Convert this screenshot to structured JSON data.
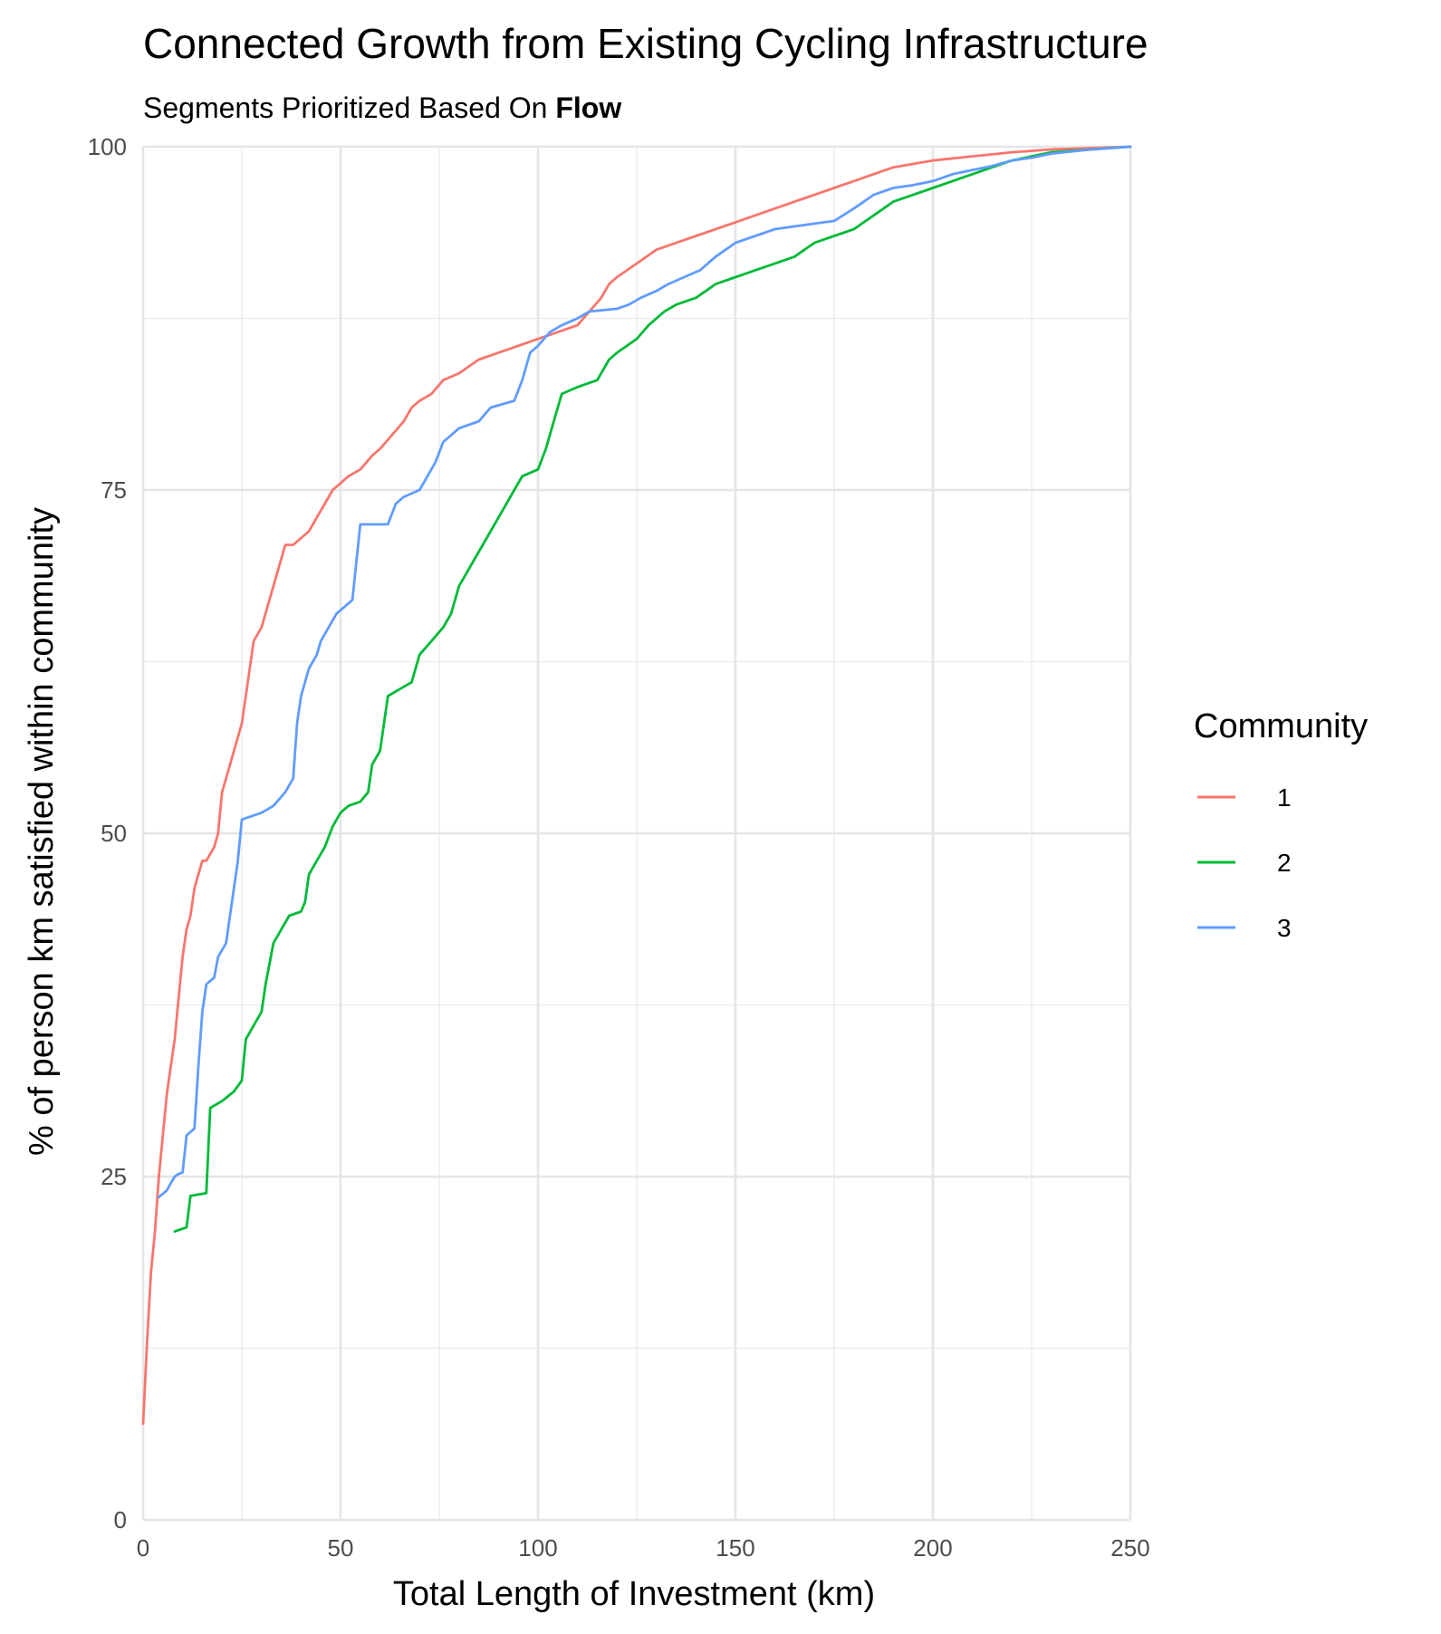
{
  "chart_data": {
    "type": "line",
    "title": "Connected Growth from Existing Cycling Infrastructure",
    "subtitle_prefix": "Segments Prioritized Based On ",
    "subtitle_emphasis": "Flow",
    "xlabel": "Total Length of Investment (km)",
    "ylabel": "% of person km satisfied within community",
    "xlim": [
      0,
      250
    ],
    "ylim": [
      0,
      100
    ],
    "x_ticks": [
      "0",
      "50",
      "100",
      "150",
      "200",
      "250"
    ],
    "y_ticks": [
      "0",
      "25",
      "50",
      "75",
      "100"
    ],
    "grid": true,
    "legend": {
      "title": "Community",
      "position": "right"
    },
    "series": [
      {
        "name": "1",
        "color": "#F8766D",
        "points": [
          [
            0,
            7
          ],
          [
            1,
            13
          ],
          [
            2,
            18
          ],
          [
            3,
            21
          ],
          [
            4,
            25
          ],
          [
            5,
            28
          ],
          [
            6,
            31
          ],
          [
            7,
            33
          ],
          [
            8,
            35
          ],
          [
            9,
            38
          ],
          [
            10,
            41
          ],
          [
            11,
            43
          ],
          [
            12,
            44
          ],
          [
            13,
            46
          ],
          [
            14,
            47
          ],
          [
            15,
            48
          ],
          [
            16,
            48
          ],
          [
            18,
            49
          ],
          [
            19,
            50
          ],
          [
            20,
            53
          ],
          [
            21,
            54
          ],
          [
            23,
            56
          ],
          [
            25,
            58
          ],
          [
            26,
            60
          ],
          [
            27,
            62
          ],
          [
            28,
            64
          ],
          [
            30,
            65
          ],
          [
            32,
            67
          ],
          [
            34,
            69
          ],
          [
            36,
            71
          ],
          [
            38,
            71
          ],
          [
            40,
            71.5
          ],
          [
            42,
            72
          ],
          [
            44,
            73
          ],
          [
            46,
            74
          ],
          [
            48,
            75
          ],
          [
            50,
            75.5
          ],
          [
            52,
            76
          ],
          [
            55,
            76.5
          ],
          [
            58,
            77.5
          ],
          [
            60,
            78
          ],
          [
            63,
            79
          ],
          [
            66,
            80
          ],
          [
            68,
            81
          ],
          [
            70,
            81.5
          ],
          [
            73,
            82
          ],
          [
            76,
            83
          ],
          [
            80,
            83.5
          ],
          [
            85,
            84.5
          ],
          [
            90,
            85
          ],
          [
            95,
            85.5
          ],
          [
            100,
            86
          ],
          [
            105,
            86.5
          ],
          [
            110,
            87
          ],
          [
            113,
            88
          ],
          [
            116,
            89
          ],
          [
            118,
            90
          ],
          [
            120,
            90.5
          ],
          [
            125,
            91.5
          ],
          [
            130,
            92.5
          ],
          [
            135,
            93
          ],
          [
            140,
            93.5
          ],
          [
            145,
            94
          ],
          [
            150,
            94.5
          ],
          [
            155,
            95
          ],
          [
            160,
            95.5
          ],
          [
            165,
            96
          ],
          [
            170,
            96.5
          ],
          [
            175,
            97
          ],
          [
            180,
            97.5
          ],
          [
            185,
            98
          ],
          [
            190,
            98.5
          ],
          [
            200,
            99
          ],
          [
            210,
            99.3
          ],
          [
            220,
            99.6
          ],
          [
            230,
            99.8
          ],
          [
            240,
            99.9
          ],
          [
            250,
            100
          ]
        ]
      },
      {
        "name": "2",
        "color": "#00BA38",
        "points": [
          [
            8,
            21
          ],
          [
            10,
            21.2
          ],
          [
            11,
            21.3
          ],
          [
            12,
            23.6
          ],
          [
            16,
            23.8
          ],
          [
            17,
            30
          ],
          [
            20,
            30.5
          ],
          [
            23,
            31.2
          ],
          [
            25,
            32
          ],
          [
            26,
            35
          ],
          [
            28,
            36
          ],
          [
            30,
            37
          ],
          [
            31,
            39
          ],
          [
            33,
            42
          ],
          [
            35,
            43
          ],
          [
            37,
            44
          ],
          [
            40,
            44.3
          ],
          [
            41,
            45
          ],
          [
            42,
            47
          ],
          [
            44,
            48
          ],
          [
            46,
            49
          ],
          [
            48,
            50.5
          ],
          [
            50,
            51.5
          ],
          [
            52,
            52
          ],
          [
            55,
            52.3
          ],
          [
            57,
            53
          ],
          [
            58,
            55
          ],
          [
            60,
            56
          ],
          [
            62,
            60
          ],
          [
            65,
            60.5
          ],
          [
            68,
            61
          ],
          [
            70,
            63
          ],
          [
            73,
            64
          ],
          [
            76,
            65
          ],
          [
            78,
            66
          ],
          [
            80,
            68
          ],
          [
            82,
            69
          ],
          [
            84,
            70
          ],
          [
            86,
            71
          ],
          [
            88,
            72
          ],
          [
            90,
            73
          ],
          [
            92,
            74
          ],
          [
            94,
            75
          ],
          [
            96,
            76
          ],
          [
            100,
            76.5
          ],
          [
            102,
            78
          ],
          [
            104,
            80
          ],
          [
            106,
            82
          ],
          [
            110,
            82.5
          ],
          [
            115,
            83
          ],
          [
            118,
            84.5
          ],
          [
            120,
            85
          ],
          [
            125,
            86
          ],
          [
            128,
            87
          ],
          [
            132,
            88
          ],
          [
            135,
            88.5
          ],
          [
            140,
            89
          ],
          [
            145,
            90
          ],
          [
            150,
            90.5
          ],
          [
            155,
            91
          ],
          [
            160,
            91.5
          ],
          [
            165,
            92
          ],
          [
            170,
            93
          ],
          [
            175,
            93.5
          ],
          [
            180,
            94
          ],
          [
            185,
            95
          ],
          [
            190,
            96
          ],
          [
            195,
            96.5
          ],
          [
            200,
            97
          ],
          [
            205,
            97.5
          ],
          [
            210,
            98
          ],
          [
            215,
            98.5
          ],
          [
            220,
            99
          ],
          [
            225,
            99.3
          ],
          [
            230,
            99.6
          ],
          [
            240,
            99.8
          ],
          [
            250,
            100
          ]
        ]
      },
      {
        "name": "3",
        "color": "#619CFF",
        "points": [
          [
            4,
            23.5
          ],
          [
            6,
            24
          ],
          [
            7,
            24.5
          ],
          [
            8,
            25
          ],
          [
            9,
            25.2
          ],
          [
            10,
            25.3
          ],
          [
            11,
            28
          ],
          [
            13,
            28.5
          ],
          [
            14,
            33
          ],
          [
            15,
            37
          ],
          [
            16,
            39
          ],
          [
            18,
            39.5
          ],
          [
            19,
            41
          ],
          [
            21,
            42
          ],
          [
            22,
            44
          ],
          [
            23,
            46
          ],
          [
            24,
            48
          ],
          [
            25,
            51
          ],
          [
            30,
            51.5
          ],
          [
            33,
            52
          ],
          [
            36,
            53
          ],
          [
            38,
            54
          ],
          [
            39,
            58
          ],
          [
            40,
            60
          ],
          [
            42,
            62
          ],
          [
            44,
            63
          ],
          [
            45,
            64
          ],
          [
            47,
            65
          ],
          [
            49,
            66
          ],
          [
            51,
            66.5
          ],
          [
            53,
            67
          ],
          [
            55,
            72.5
          ],
          [
            62,
            72.5
          ],
          [
            64,
            74
          ],
          [
            66,
            74.5
          ],
          [
            70,
            75
          ],
          [
            72,
            76
          ],
          [
            74,
            77
          ],
          [
            76,
            78.5
          ],
          [
            78,
            79
          ],
          [
            80,
            79.5
          ],
          [
            85,
            80
          ],
          [
            88,
            81
          ],
          [
            94,
            81.5
          ],
          [
            96,
            83
          ],
          [
            98,
            85
          ],
          [
            100,
            85.5
          ],
          [
            103,
            86.5
          ],
          [
            106,
            87
          ],
          [
            110,
            87.5
          ],
          [
            113,
            88
          ],
          [
            120,
            88.2
          ],
          [
            123,
            88.5
          ],
          [
            126,
            89
          ],
          [
            130,
            89.5
          ],
          [
            133,
            90
          ],
          [
            137,
            90.5
          ],
          [
            141,
            91
          ],
          [
            145,
            92
          ],
          [
            150,
            93
          ],
          [
            155,
            93.5
          ],
          [
            160,
            94
          ],
          [
            165,
            94.2
          ],
          [
            170,
            94.4
          ],
          [
            175,
            94.6
          ],
          [
            180,
            95.5
          ],
          [
            185,
            96.5
          ],
          [
            190,
            97
          ],
          [
            195,
            97.2
          ],
          [
            200,
            97.5
          ],
          [
            205,
            98
          ],
          [
            210,
            98.3
          ],
          [
            215,
            98.6
          ],
          [
            220,
            99
          ],
          [
            225,
            99.2
          ],
          [
            230,
            99.5
          ],
          [
            240,
            99.8
          ],
          [
            250,
            100
          ]
        ]
      }
    ]
  }
}
